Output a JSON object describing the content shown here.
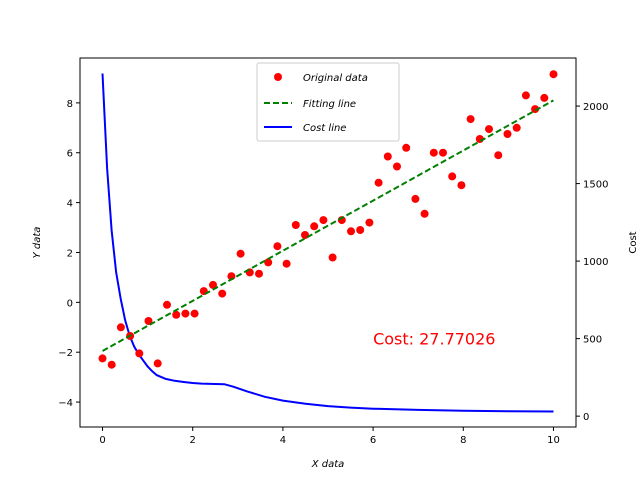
{
  "chart_data": {
    "type": "scatter",
    "xlabel": "X data",
    "ylabel": "Y data",
    "y2label": "Cost",
    "xlim": [
      -0.5,
      10.5
    ],
    "ylim": [
      -5,
      9.8
    ],
    "y2lim": [
      -70,
      2310
    ],
    "xticks": [
      0,
      2,
      4,
      6,
      8,
      10
    ],
    "yticks": [
      -4,
      -2,
      0,
      2,
      4,
      6,
      8
    ],
    "y2ticks": [
      0,
      500,
      1000,
      1500,
      2000
    ],
    "grid": false,
    "legend_position": "top-center",
    "annotation": {
      "text": "Cost: 27.77026",
      "color": "#ff0000",
      "x": 6.0,
      "y": -1.7
    },
    "series": [
      {
        "name": "Original data",
        "kind": "scatter",
        "color": "#ff0000",
        "x": [
          0,
          0.204,
          0.408,
          0.612,
          0.816,
          1.02,
          1.224,
          1.429,
          1.633,
          1.837,
          2.041,
          2.245,
          2.449,
          2.653,
          2.857,
          3.061,
          3.265,
          3.469,
          3.673,
          3.878,
          4.082,
          4.286,
          4.49,
          4.694,
          4.898,
          5.102,
          5.306,
          5.51,
          5.714,
          5.918,
          6.122,
          6.327,
          6.531,
          6.735,
          6.939,
          7.143,
          7.347,
          7.551,
          7.755,
          7.959,
          8.163,
          8.367,
          8.571,
          8.776,
          8.98,
          9.184,
          9.388,
          9.592,
          9.796,
          10.0
        ],
        "y": [
          -2.25,
          -2.5,
          -1.0,
          -1.35,
          -2.05,
          -0.75,
          -2.45,
          -0.1,
          -0.5,
          -0.45,
          -0.45,
          0.45,
          0.7,
          0.35,
          1.05,
          1.95,
          1.2,
          1.15,
          1.6,
          2.25,
          1.55,
          3.1,
          2.7,
          3.05,
          3.3,
          1.8,
          3.3,
          2.85,
          2.9,
          3.2,
          4.8,
          5.85,
          5.45,
          6.2,
          4.15,
          3.55,
          6.0,
          6.0,
          5.05,
          4.7,
          7.35,
          6.55,
          6.95,
          5.9,
          6.75,
          7.0,
          8.3,
          7.75,
          8.2,
          9.15
        ]
      },
      {
        "name": "Fitting line",
        "kind": "line",
        "style": "dashed",
        "color": "#008000",
        "x": [
          0,
          10
        ],
        "y": [
          -1.95,
          8.1
        ]
      },
      {
        "name": "Cost line",
        "kind": "line",
        "axis": "right",
        "color": "#0000ff",
        "x": [
          0,
          0.1,
          0.2,
          0.3,
          0.4,
          0.5,
          0.6,
          0.7,
          0.8,
          0.9,
          1.0,
          1.1,
          1.2,
          1.4,
          1.6,
          1.8,
          2.0,
          2.2,
          2.4,
          2.7,
          2.9,
          3.2,
          3.6,
          4.0,
          4.5,
          5.0,
          5.5,
          6.0,
          7.0,
          8.0,
          9.0,
          10.0
        ],
        "y": [
          2210,
          1600,
          1200,
          930,
          760,
          620,
          520,
          450,
          400,
          360,
          320,
          290,
          265,
          240,
          228,
          220,
          214,
          210,
          208,
          206,
          190,
          160,
          125,
          100,
          80,
          65,
          55,
          48,
          40,
          35,
          32,
          30
        ]
      }
    ]
  }
}
